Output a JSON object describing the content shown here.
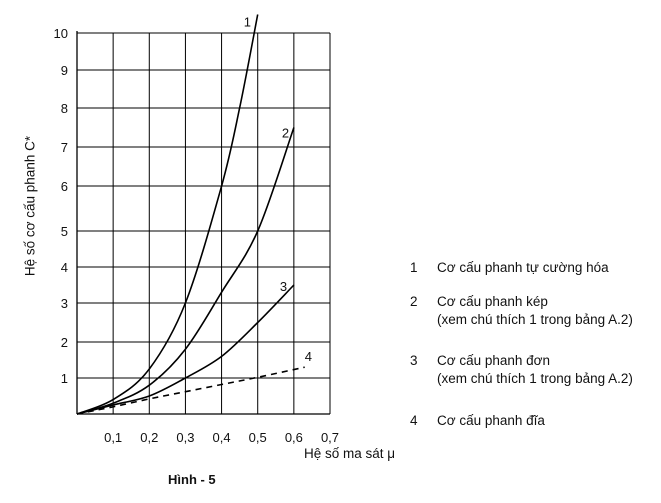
{
  "chart_data": {
    "type": "line",
    "title": "",
    "xlabel": "Hệ số ma sát μ",
    "ylabel": "Hệ số cơ cấu phanh C*",
    "xlim": [
      0,
      0.7
    ],
    "xticks": [
      "0,1",
      "0,2",
      "0,3",
      "0,4",
      "0,5",
      "0,6",
      "0,7"
    ],
    "yticks": [
      "1",
      "2",
      "3",
      "4",
      "5",
      "6",
      "7",
      "8",
      "9",
      "10"
    ],
    "grid": true,
    "series": [
      {
        "name": "1",
        "label": "1",
        "dashed": false,
        "points": [
          [
            0,
            0
          ],
          [
            0.1,
            0.4
          ],
          [
            0.2,
            1.25
          ],
          [
            0.3,
            3.0
          ],
          [
            0.4,
            6.0
          ],
          [
            0.45,
            8.0
          ],
          [
            0.5,
            10.5
          ]
        ]
      },
      {
        "name": "2",
        "label": "2",
        "dashed": false,
        "points": [
          [
            0,
            0
          ],
          [
            0.1,
            0.3
          ],
          [
            0.2,
            0.8
          ],
          [
            0.3,
            1.8
          ],
          [
            0.4,
            3.3
          ],
          [
            0.5,
            5.0
          ],
          [
            0.6,
            7.5
          ]
        ]
      },
      {
        "name": "3",
        "label": "3",
        "dashed": false,
        "points": [
          [
            0,
            0
          ],
          [
            0.1,
            0.25
          ],
          [
            0.2,
            0.5
          ],
          [
            0.3,
            1.0
          ],
          [
            0.4,
            1.6
          ],
          [
            0.5,
            2.5
          ],
          [
            0.6,
            3.5
          ]
        ]
      },
      {
        "name": "4",
        "label": "4",
        "dashed": true,
        "points": [
          [
            0,
            0
          ],
          [
            0.1,
            0.2
          ],
          [
            0.2,
            0.42
          ],
          [
            0.3,
            0.62
          ],
          [
            0.4,
            0.82
          ],
          [
            0.5,
            1.02
          ],
          [
            0.63,
            1.3
          ]
        ]
      }
    ]
  },
  "legend": [
    {
      "num": "1",
      "text": "Cơ cấu phanh tự cường hóa",
      "sub": ""
    },
    {
      "num": "2",
      "text": "Cơ cấu phanh kép",
      "sub": "(xem chú thích 1 trong bảng A.2)"
    },
    {
      "num": "3",
      "text": "Cơ cấu phanh đơn",
      "sub": "(xem chú thích 1 trong bảng A.2)"
    },
    {
      "num": "4",
      "text": "Cơ cấu phanh đĩa",
      "sub": ""
    }
  ],
  "caption": "Hình - 5"
}
